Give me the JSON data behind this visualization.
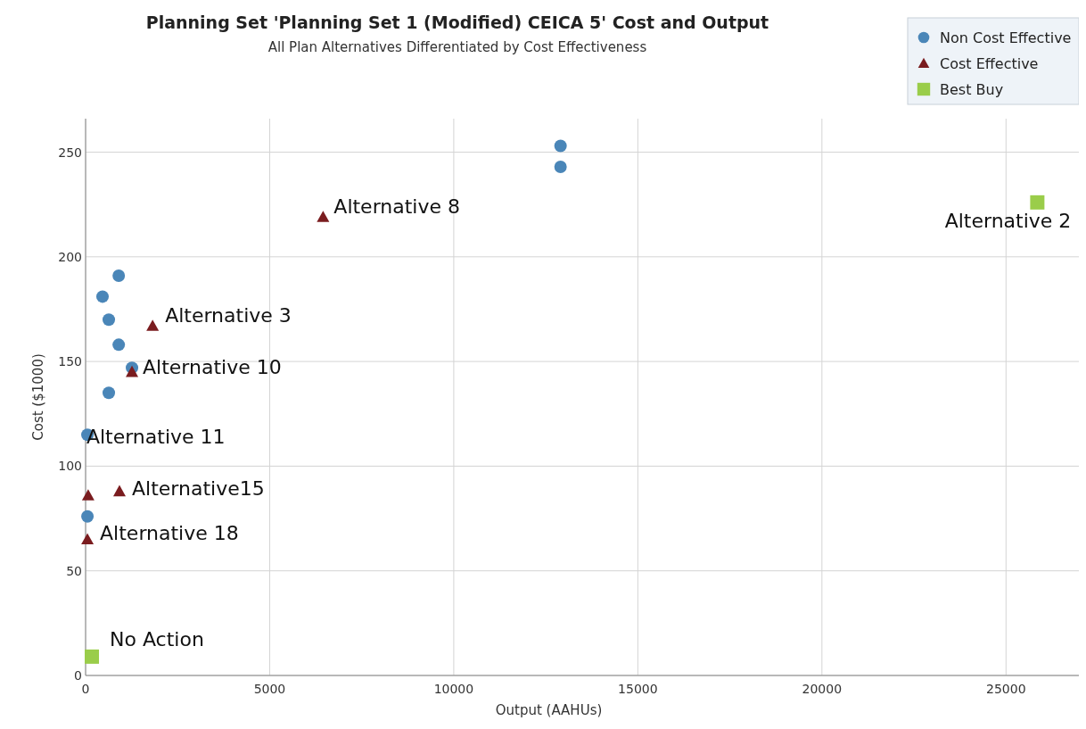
{
  "chart_data": {
    "type": "scatter",
    "title": "Planning Set 'Planning Set 1 (Modified) CEICA 5' Cost and Output",
    "subtitle": "All Plan Alternatives Differentiated by Cost Effectiveness",
    "xlabel": "Output (AAHUs)",
    "ylabel": "Cost ($1000)",
    "xlim": [
      0,
      27100
    ],
    "xticks": [
      0,
      5000,
      10000,
      15000,
      20000,
      25000
    ],
    "ylim": [
      0,
      266
    ],
    "yticks": [
      0,
      50,
      100,
      150,
      200,
      250
    ],
    "grid": true,
    "legend": "top right",
    "series": [
      {
        "name": "Non Cost Effective",
        "color": "#4a86b8",
        "marker": "circle",
        "x": [
          12900,
          12900,
          900,
          460,
          630,
          900,
          1260,
          630,
          50,
          50
        ],
        "values": [
          253,
          243,
          191,
          181,
          170,
          158,
          147,
          135,
          115,
          76
        ]
      },
      {
        "name": "Cost Effective",
        "color": "#7a1c1f",
        "marker": "triangle",
        "x": [
          6450,
          1820,
          1260,
          70,
          920,
          50
        ],
        "values": [
          219,
          167,
          145,
          86,
          88,
          65
        ]
      },
      {
        "name": "Best Buy",
        "color": "#9acd4a",
        "marker": "square",
        "x": [
          25850,
          170
        ],
        "values": [
          226,
          9
        ]
      }
    ],
    "annotations": [
      {
        "text": "Alternative 8",
        "x": 6450,
        "y": 219
      },
      {
        "text": "Alternative 3",
        "x": 1820,
        "y": 167
      },
      {
        "text": "Alternative 10",
        "x": 1260,
        "y": 145
      },
      {
        "text": "Alternative 11",
        "x": 70,
        "y": 86
      },
      {
        "text": "Alternative15",
        "x": 920,
        "y": 88
      },
      {
        "text": "Alternative 18",
        "x": 50,
        "y": 65
      },
      {
        "text": "Alternative 2",
        "x": 25850,
        "y": 226
      },
      {
        "text": "No Action",
        "x": 170,
        "y": 9
      }
    ]
  }
}
